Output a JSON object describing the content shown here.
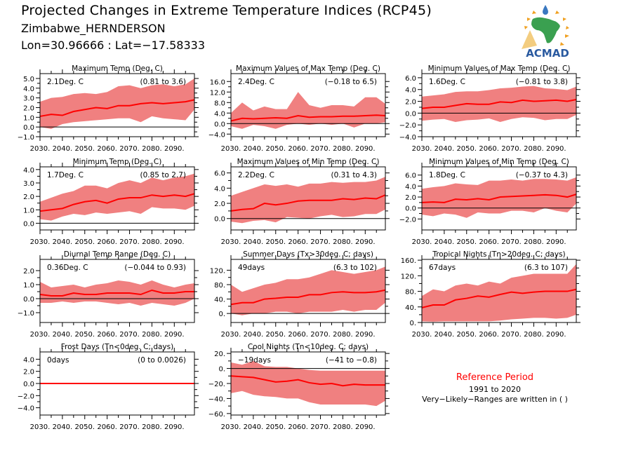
{
  "header": {
    "title": "Projected Changes in Extreme Temperature Indices (RCP45)",
    "station": "Zimbabwe_HERNDERSON",
    "coordinates": "Lon=30.96666 : Lat=−17.58333"
  },
  "logo": {
    "text": "ACMAD",
    "icon": "acmad-africa-logo-icon"
  },
  "reference": {
    "title": "Reference Period",
    "period": "1991 to 2020",
    "note": "Very−Likely−Ranges are written in ( )"
  },
  "colors": {
    "band": "#f08080",
    "median": "#ff0000",
    "zero_line": "#000000",
    "reference_title": "#ff0000"
  },
  "chart_data": [
    {
      "type": "area",
      "title": "Maximum Temp (Deg. C)",
      "median_label": "2.1Deg. C",
      "range_label": "(0.81 to 3.6)",
      "xlabel": "",
      "ylabel": "",
      "xlim": [
        2030,
        2099
      ],
      "ylim": [
        -1.0,
        5.5
      ],
      "yticks": [
        -1.0,
        0.0,
        1.0,
        2.0,
        3.0,
        4.0,
        5.0
      ],
      "ytick_labels": [
        "−1.0",
        "0.0",
        "1.0",
        "2.0",
        "3.0",
        "4.0",
        "5.0"
      ],
      "xticks": [
        2030,
        2040,
        2050,
        2060,
        2070,
        2080,
        2090
      ],
      "xtick_labels": [
        "2030.",
        "2040.",
        "2050.",
        "2060.",
        "2070.",
        "2080.",
        "2090."
      ],
      "x": [
        2030,
        2035,
        2040,
        2045,
        2050,
        2055,
        2060,
        2065,
        2070,
        2075,
        2080,
        2085,
        2090,
        2095,
        2099
      ],
      "median": [
        1.1,
        1.3,
        1.2,
        1.6,
        1.8,
        2.0,
        1.9,
        2.2,
        2.2,
        2.4,
        2.5,
        2.4,
        2.5,
        2.6,
        2.8
      ],
      "upper": [
        2.6,
        3.0,
        3.1,
        3.4,
        3.5,
        3.4,
        3.6,
        4.2,
        4.3,
        4.0,
        4.3,
        4.4,
        4.2,
        4.4,
        5.0
      ],
      "lower": [
        0.0,
        -0.2,
        0.3,
        0.5,
        0.6,
        0.7,
        0.8,
        0.9,
        0.9,
        0.5,
        1.1,
        0.9,
        0.8,
        0.7,
        1.8
      ]
    },
    {
      "type": "area",
      "title": "Maximum Values of Max Temp (Deg. C)",
      "median_label": "2.4Deg. C",
      "range_label": "(−0.18 to 6.5)",
      "xlabel": "",
      "ylabel": "",
      "xlim": [
        2030,
        2099
      ],
      "ylim": [
        -5.0,
        19.0
      ],
      "yticks": [
        -4.0,
        0.0,
        4.0,
        8.0,
        12.0,
        16.0
      ],
      "ytick_labels": [
        "−4.0",
        "0.0",
        "4.0",
        "8.0",
        "12.0",
        "16.0"
      ],
      "xticks": [
        2030,
        2040,
        2050,
        2060,
        2070,
        2080,
        2090
      ],
      "xtick_labels": [
        "2030.",
        "2040.",
        "2050.",
        "2060.",
        "2070.",
        "2080.",
        "2090."
      ],
      "x": [
        2030,
        2035,
        2040,
        2045,
        2050,
        2055,
        2060,
        2065,
        2070,
        2075,
        2080,
        2085,
        2090,
        2095,
        2099
      ],
      "median": [
        1.0,
        2.0,
        1.8,
        2.0,
        2.2,
        2.0,
        3.0,
        2.4,
        2.6,
        2.6,
        2.8,
        2.8,
        3.0,
        3.2,
        3.0
      ],
      "upper": [
        4.0,
        8.0,
        5.0,
        6.5,
        5.5,
        5.5,
        12.0,
        7.0,
        6.0,
        7.0,
        7.0,
        6.5,
        10.0,
        10.0,
        7.5
      ],
      "lower": [
        -1.0,
        -2.0,
        -0.5,
        -1.0,
        -2.0,
        -0.5,
        0.0,
        -0.5,
        0.0,
        -0.5,
        0.0,
        -1.5,
        0.0,
        0.0,
        0.5
      ]
    },
    {
      "type": "area",
      "title": "Minimum Values of Max Temp (Deg. C)",
      "median_label": "1.6Deg. C",
      "range_label": "(−0.81 to 3.8)",
      "xlabel": "",
      "ylabel": "",
      "xlim": [
        2030,
        2099
      ],
      "ylim": [
        -4.0,
        6.7
      ],
      "yticks": [
        -4.0,
        -2.0,
        0.0,
        2.0,
        4.0,
        6.0
      ],
      "ytick_labels": [
        "−4.0",
        "−2.0",
        "0.0",
        "2.0",
        "4.0",
        "6.0"
      ],
      "xticks": [
        2030,
        2040,
        2050,
        2060,
        2070,
        2080,
        2090
      ],
      "xtick_labels": [
        "2030.",
        "2040.",
        "2050.",
        "2060.",
        "2070.",
        "2080.",
        "2090."
      ],
      "x": [
        2030,
        2035,
        2040,
        2045,
        2050,
        2055,
        2060,
        2065,
        2070,
        2075,
        2080,
        2085,
        2090,
        2095,
        2099
      ],
      "median": [
        0.8,
        1.0,
        1.0,
        1.3,
        1.6,
        1.5,
        1.5,
        1.9,
        1.8,
        2.2,
        2.0,
        2.1,
        2.2,
        2.0,
        2.3
      ],
      "upper": [
        2.8,
        3.0,
        3.2,
        3.6,
        3.7,
        3.7,
        3.9,
        4.2,
        4.3,
        4.5,
        4.6,
        4.2,
        4.1,
        3.9,
        4.5
      ],
      "lower": [
        -1.3,
        -1.1,
        -1.0,
        -1.5,
        -1.2,
        -1.1,
        -0.9,
        -1.5,
        -1.0,
        -0.7,
        -0.8,
        -1.2,
        -1.0,
        -1.0,
        -0.3
      ]
    },
    {
      "type": "area",
      "title": "Minimum Temp (Deg. C)",
      "median_label": "1.7Deg. C",
      "range_label": "(0.85 to 2.7)",
      "xlabel": "",
      "ylabel": "",
      "xlim": [
        2030,
        2099
      ],
      "ylim": [
        -0.5,
        4.2
      ],
      "yticks": [
        0.0,
        1.0,
        2.0,
        3.0,
        4.0
      ],
      "ytick_labels": [
        "0.0",
        "1.0",
        "2.0",
        "3.0",
        "4.0"
      ],
      "xticks": [
        2030,
        2040,
        2050,
        2060,
        2070,
        2080,
        2090
      ],
      "xtick_labels": [
        "2030.",
        "2040.",
        "2050.",
        "2060.",
        "2070.",
        "2080.",
        "2090."
      ],
      "x": [
        2030,
        2035,
        2040,
        2045,
        2050,
        2055,
        2060,
        2065,
        2070,
        2075,
        2080,
        2085,
        2090,
        2095,
        2099
      ],
      "median": [
        0.9,
        1.0,
        1.1,
        1.4,
        1.6,
        1.7,
        1.5,
        1.8,
        1.9,
        1.9,
        2.1,
        2.0,
        2.1,
        2.0,
        2.2
      ],
      "upper": [
        1.6,
        1.9,
        2.2,
        2.4,
        2.8,
        2.8,
        2.6,
        3.0,
        3.2,
        3.0,
        3.4,
        3.2,
        3.4,
        3.5,
        3.7
      ],
      "lower": [
        0.3,
        0.2,
        0.5,
        0.7,
        0.6,
        0.8,
        0.7,
        0.8,
        0.9,
        0.7,
        1.2,
        1.1,
        1.1,
        1.0,
        1.3
      ]
    },
    {
      "type": "area",
      "title": "Maximum Values of Min Temp (Deg. C)",
      "median_label": "2.2Deg. C",
      "range_label": "(0.31 to 4.3)",
      "xlabel": "",
      "ylabel": "",
      "xlim": [
        2030,
        2099
      ],
      "ylim": [
        -1.5,
        6.8
      ],
      "yticks": [
        0.0,
        2.0,
        4.0,
        6.0
      ],
      "ytick_labels": [
        "0.0",
        "2.0",
        "4.0",
        "6.0"
      ],
      "xticks": [
        2030,
        2040,
        2050,
        2060,
        2070,
        2080,
        2090
      ],
      "xtick_labels": [
        "2030.",
        "2040.",
        "2050.",
        "2060.",
        "2070.",
        "2080.",
        "2090."
      ],
      "x": [
        2030,
        2035,
        2040,
        2045,
        2050,
        2055,
        2060,
        2065,
        2070,
        2075,
        2080,
        2085,
        2090,
        2095,
        2099
      ],
      "median": [
        1.0,
        1.2,
        1.3,
        2.0,
        1.8,
        2.0,
        2.3,
        2.4,
        2.4,
        2.4,
        2.6,
        2.5,
        2.7,
        2.6,
        3.1
      ],
      "upper": [
        3.0,
        3.5,
        4.0,
        4.5,
        4.3,
        4.5,
        4.2,
        4.6,
        4.6,
        4.8,
        4.7,
        4.8,
        4.8,
        5.0,
        5.5
      ],
      "lower": [
        -0.4,
        -0.6,
        -0.3,
        -0.2,
        -0.5,
        0.2,
        0.1,
        0.0,
        0.3,
        0.5,
        0.2,
        0.3,
        0.6,
        0.6,
        1.2
      ]
    },
    {
      "type": "area",
      "title": "Minimum Values of Min Temp (Deg. C)",
      "median_label": "1.8Deg. C",
      "range_label": "(−0.37 to 4.3)",
      "xlabel": "",
      "ylabel": "",
      "xlim": [
        2030,
        2099
      ],
      "ylim": [
        -4.0,
        7.5
      ],
      "yticks": [
        -2.0,
        0.0,
        2.0,
        4.0,
        6.0
      ],
      "ytick_labels": [
        "−2.0",
        "0.0",
        "2.0",
        "4.0",
        "6.0"
      ],
      "xticks": [
        2030,
        2040,
        2050,
        2060,
        2070,
        2080,
        2090
      ],
      "xtick_labels": [
        "2030.",
        "2040.",
        "2050.",
        "2060.",
        "2070.",
        "2080.",
        "2090."
      ],
      "x": [
        2030,
        2035,
        2040,
        2045,
        2050,
        2055,
        2060,
        2065,
        2070,
        2075,
        2080,
        2085,
        2090,
        2095,
        2099
      ],
      "median": [
        1.0,
        1.1,
        1.0,
        1.6,
        1.5,
        1.7,
        1.5,
        2.0,
        2.1,
        2.2,
        2.3,
        2.4,
        2.3,
        2.0,
        2.5
      ],
      "upper": [
        3.5,
        3.8,
        4.0,
        4.5,
        4.3,
        4.2,
        5.0,
        5.0,
        5.2,
        5.0,
        5.3,
        5.3,
        5.2,
        5.0,
        5.6
      ],
      "lower": [
        -1.2,
        -1.5,
        -1.0,
        -1.2,
        -1.8,
        -0.8,
        -1.0,
        -1.0,
        -0.5,
        -0.5,
        -0.8,
        0.0,
        -0.5,
        -0.8,
        0.8
      ]
    },
    {
      "type": "area",
      "title": "Diurnal Temp Range (Deg. C)",
      "median_label": "0.36Deg. C",
      "range_label": "(−0.044 to 0.93)",
      "xlabel": "",
      "ylabel": "",
      "xlim": [
        2030,
        2099
      ],
      "ylim": [
        -1.7,
        2.8
      ],
      "yticks": [
        -1.0,
        0.0,
        1.0,
        2.0
      ],
      "ytick_labels": [
        "−1.0",
        "0.0",
        "1.0",
        "2.0"
      ],
      "xticks": [
        2030,
        2040,
        2050,
        2060,
        2070,
        2080,
        2090
      ],
      "xtick_labels": [
        "2030.",
        "2040.",
        "2050.",
        "2060.",
        "2070.",
        "2080.",
        "2090."
      ],
      "x": [
        2030,
        2035,
        2040,
        2045,
        2050,
        2055,
        2060,
        2065,
        2070,
        2075,
        2080,
        2085,
        2090,
        2095,
        2099
      ],
      "median": [
        0.3,
        0.2,
        0.2,
        0.4,
        0.3,
        0.3,
        0.4,
        0.4,
        0.4,
        0.3,
        0.6,
        0.4,
        0.4,
        0.5,
        0.5
      ],
      "upper": [
        1.2,
        0.8,
        0.9,
        1.0,
        0.8,
        1.0,
        1.1,
        1.3,
        1.2,
        1.0,
        1.3,
        1.0,
        0.8,
        1.0,
        1.1
      ],
      "lower": [
        -0.3,
        -0.3,
        -0.2,
        -0.3,
        -0.2,
        -0.2,
        -0.3,
        -0.4,
        -0.3,
        -0.5,
        -0.3,
        -0.4,
        -0.5,
        -0.3,
        0.0
      ]
    },
    {
      "type": "area",
      "title": "Summer Days (Tx>30deg. C; days)",
      "median_label": "49days",
      "range_label": "(6.3 to 102)",
      "xlabel": "",
      "ylabel": "",
      "xlim": [
        2030,
        2099
      ],
      "ylim": [
        -25,
        150
      ],
      "yticks": [
        0,
        40,
        80,
        120
      ],
      "ytick_labels": [
        "0.",
        "40.",
        "80.",
        "120."
      ],
      "xticks": [
        2030,
        2040,
        2050,
        2060,
        2070,
        2080,
        2090
      ],
      "xtick_labels": [
        "2030.",
        "2040.",
        "2050.",
        "2060.",
        "2070.",
        "2080.",
        "2090."
      ],
      "x": [
        2030,
        2035,
        2040,
        2045,
        2050,
        2055,
        2060,
        2065,
        2070,
        2075,
        2080,
        2085,
        2090,
        2095,
        2099
      ],
      "median": [
        25,
        30,
        30,
        40,
        42,
        45,
        45,
        52,
        52,
        58,
        60,
        58,
        58,
        60,
        65
      ],
      "upper": [
        80,
        60,
        70,
        80,
        85,
        95,
        95,
        100,
        110,
        120,
        115,
        110,
        115,
        120,
        130
      ],
      "lower": [
        0,
        -5,
        0,
        0,
        5,
        5,
        0,
        5,
        5,
        5,
        10,
        5,
        10,
        10,
        30
      ]
    },
    {
      "type": "area",
      "title": "Tropical Nights (Tn>20deg. C; days)",
      "median_label": "67days",
      "range_label": "(6.3 to 107)",
      "xlabel": "",
      "ylabel": "",
      "xlim": [
        2030,
        2099
      ],
      "ylim": [
        0,
        162
      ],
      "yticks": [
        0,
        40,
        80,
        120,
        160
      ],
      "ytick_labels": [
        "0.",
        "40.",
        "80.",
        "120.",
        "160."
      ],
      "xticks": [
        2030,
        2040,
        2050,
        2060,
        2070,
        2080,
        2090
      ],
      "xtick_labels": [
        "2030.",
        "2040.",
        "2050.",
        "2060.",
        "2070.",
        "2080.",
        "2090."
      ],
      "x": [
        2030,
        2035,
        2040,
        2045,
        2050,
        2055,
        2060,
        2065,
        2070,
        2075,
        2080,
        2085,
        2090,
        2095,
        2099
      ],
      "median": [
        38,
        45,
        45,
        58,
        62,
        68,
        65,
        72,
        78,
        75,
        78,
        80,
        80,
        80,
        85
      ],
      "upper": [
        68,
        85,
        80,
        95,
        100,
        95,
        105,
        100,
        115,
        120,
        125,
        125,
        125,
        125,
        150
      ],
      "lower": [
        3,
        2,
        3,
        3,
        3,
        3,
        3,
        5,
        8,
        10,
        12,
        12,
        10,
        12,
        20
      ]
    },
    {
      "type": "area",
      "title": "Frost Days (Tn<0deg. C; days)",
      "median_label": "0days",
      "range_label": "(0 to 0.0026)",
      "xlabel": "",
      "ylabel": "",
      "xlim": [
        2030,
        2099
      ],
      "ylim": [
        -5.2,
        5.2
      ],
      "yticks": [
        -4.0,
        -2.0,
        0.0,
        2.0,
        4.0
      ],
      "ytick_labels": [
        "−4.0",
        "−2.0",
        "0.0",
        "2.0",
        "4.0"
      ],
      "xticks": [
        2030,
        2040,
        2050,
        2060,
        2070,
        2080,
        2090
      ],
      "xtick_labels": [
        "2030.",
        "2040.",
        "2050.",
        "2060.",
        "2070.",
        "2080.",
        "2090."
      ],
      "x": [
        2030,
        2099
      ],
      "median": [
        0,
        0
      ],
      "upper": [
        0.0026,
        0.0026
      ],
      "lower": [
        0,
        0
      ]
    },
    {
      "type": "area",
      "title": "Cool Nights (Tn<10deg. C; days)",
      "median_label": "−19days",
      "range_label": "(−41 to −0.8)",
      "xlabel": "",
      "ylabel": "",
      "xlim": [
        2030,
        2099
      ],
      "ylim": [
        -62,
        22
      ],
      "yticks": [
        -60,
        -40,
        -20,
        0,
        20
      ],
      "ytick_labels": [
        "−60.",
        "−40.",
        "−20.",
        "0.",
        "20."
      ],
      "xticks": [
        2030,
        2040,
        2050,
        2060,
        2070,
        2080,
        2090
      ],
      "xtick_labels": [
        "2030.",
        "2040.",
        "2050.",
        "2060.",
        "2070.",
        "2080.",
        "2090."
      ],
      "x": [
        2030,
        2035,
        2040,
        2045,
        2050,
        2055,
        2060,
        2065,
        2070,
        2075,
        2080,
        2085,
        2090,
        2095,
        2099
      ],
      "median": [
        -10,
        -11,
        -12,
        -15,
        -18,
        -17,
        -15,
        -19,
        -21,
        -20,
        -23,
        -21,
        -22,
        -22,
        -22
      ],
      "upper": [
        8,
        5,
        10,
        3,
        2,
        2,
        0,
        -2,
        -3,
        -3,
        -3,
        -3,
        -3,
        -3,
        -3
      ],
      "lower": [
        -33,
        -30,
        -35,
        -37,
        -38,
        -40,
        -40,
        -45,
        -48,
        -48,
        -48,
        -48,
        -48,
        -50,
        -43
      ]
    }
  ]
}
